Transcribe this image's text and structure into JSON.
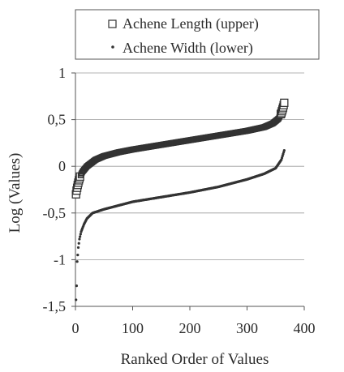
{
  "chart_data": {
    "type": "scatter",
    "title": "",
    "xlabel": "Ranked Order of Values",
    "ylabel": "Log (Values)",
    "xlim": [
      0,
      400
    ],
    "ylim": [
      -1.5,
      1
    ],
    "x_ticks": [
      0,
      100,
      200,
      300,
      400
    ],
    "x_tick_labels": [
      "0",
      "100",
      "200",
      "300",
      "400"
    ],
    "y_ticks": [
      1,
      0.5,
      0,
      -0.5,
      -1,
      -1.5
    ],
    "y_tick_labels": [
      "1",
      "0,5",
      "0",
      "-0,5",
      "-1",
      "-1,5"
    ],
    "grid": {
      "horizontal": true,
      "vertical": false
    },
    "legend": {
      "position": "top-center",
      "boxed": true
    },
    "n_points": 365,
    "series": [
      {
        "name": "Achene Length (upper)",
        "marker": "open-square",
        "color": "#333333",
        "x": [
          1,
          2,
          4,
          6,
          8,
          12,
          20,
          35,
          50,
          75,
          100,
          150,
          200,
          250,
          300,
          330,
          345,
          355,
          360,
          363,
          365
        ],
        "y": [
          -0.3,
          -0.26,
          -0.2,
          -0.15,
          -0.11,
          -0.06,
          0.0,
          0.07,
          0.11,
          0.15,
          0.18,
          0.23,
          0.28,
          0.33,
          0.38,
          0.42,
          0.46,
          0.51,
          0.57,
          0.63,
          0.68
        ]
      },
      {
        "name": "Achene Width (lower)",
        "marker": "dot",
        "color": "#333333",
        "x": [
          1,
          2,
          3,
          4,
          5,
          7,
          10,
          15,
          20,
          30,
          50,
          75,
          100,
          150,
          200,
          250,
          300,
          330,
          350,
          360,
          365
        ],
        "y": [
          -1.43,
          -1.28,
          -1.02,
          -0.95,
          -0.87,
          -0.78,
          -0.7,
          -0.62,
          -0.56,
          -0.5,
          -0.46,
          -0.42,
          -0.38,
          -0.33,
          -0.28,
          -0.22,
          -0.14,
          -0.08,
          -0.02,
          0.07,
          0.17
        ]
      }
    ]
  }
}
